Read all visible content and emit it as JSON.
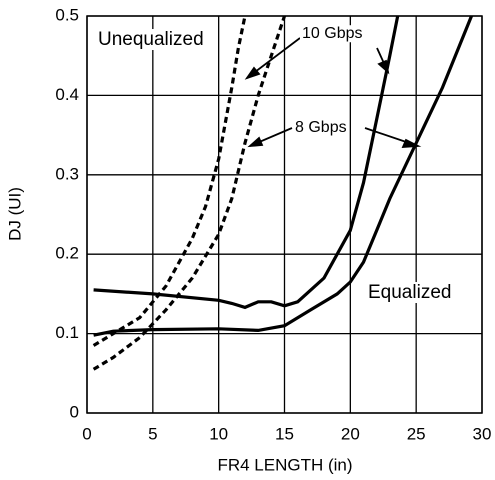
{
  "chart_data": {
    "type": "line",
    "xlabel": "FR4 LENGTH (in)",
    "ylabel": "DJ (UI)",
    "xlim": [
      0,
      30
    ],
    "xticks": [
      0,
      5,
      10,
      15,
      20,
      25,
      30
    ],
    "ylim": [
      0,
      0.5
    ],
    "yticks": [
      0,
      0.1,
      0.2,
      0.3,
      0.4,
      0.5
    ],
    "grid": true,
    "annotations": [
      "Unequalized",
      "10 Gbps",
      "8 Gbps",
      "Equalized"
    ],
    "series": [
      {
        "color": "#000000",
        "dashed": true,
        "x": [
          0.5,
          2,
          4,
          6,
          8,
          9,
          10,
          11,
          11.5,
          12
        ],
        "values": [
          0.085,
          0.1,
          0.12,
          0.16,
          0.22,
          0.26,
          0.32,
          0.41,
          0.46,
          0.5
        ]
      },
      {
        "color": "#000000",
        "dashed": true,
        "x": [
          0.5,
          2,
          4,
          6,
          8,
          10,
          11,
          12,
          13,
          14,
          15
        ],
        "values": [
          0.055,
          0.07,
          0.095,
          0.13,
          0.17,
          0.225,
          0.27,
          0.34,
          0.4,
          0.45,
          0.5
        ]
      },
      {
        "color": "#000000",
        "dashed": false,
        "x": [
          0.5,
          5,
          10,
          11,
          12,
          13,
          14,
          15,
          16,
          18,
          20,
          21,
          22,
          23,
          23.6
        ],
        "values": [
          0.155,
          0.15,
          0.142,
          0.138,
          0.133,
          0.14,
          0.14,
          0.135,
          0.14,
          0.17,
          0.23,
          0.29,
          0.37,
          0.45,
          0.5
        ]
      },
      {
        "color": "#000000",
        "dashed": false,
        "x": [
          0.5,
          2,
          5,
          10,
          13,
          15,
          17,
          19,
          20,
          21,
          22,
          23,
          25,
          27,
          29.2
        ],
        "values": [
          0.098,
          0.103,
          0.105,
          0.106,
          0.104,
          0.11,
          0.13,
          0.15,
          0.165,
          0.19,
          0.23,
          0.27,
          0.34,
          0.41,
          0.5
        ]
      }
    ]
  }
}
